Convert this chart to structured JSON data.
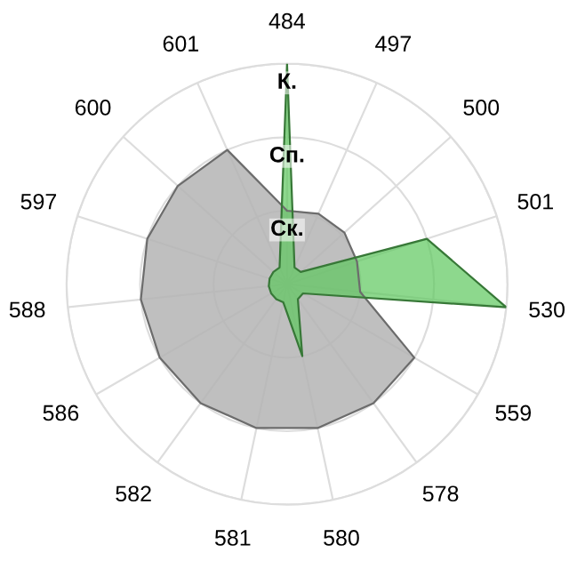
{
  "chart_data": {
    "type": "radar",
    "categories": [
      "484",
      "497",
      "500",
      "501",
      "530",
      "559",
      "578",
      "580",
      "581",
      "582",
      "586",
      "588",
      "597",
      "600",
      "601"
    ],
    "series": [
      {
        "color": "#b4b4b4",
        "values": [
          1.0,
          1.05,
          1.05,
          1.0,
          1.0,
          2.0,
          2.0,
          2.0,
          2.0,
          2.0,
          2.0,
          2.0,
          2.0,
          2.0,
          2.0
        ]
      },
      {
        "color": "#5cc85c",
        "values": [
          3.0,
          0.25,
          0.25,
          2.0,
          3.0,
          0.25,
          0.25,
          1.0,
          0.25,
          0.25,
          0.25,
          0.25,
          0.25,
          0.25,
          0.25
        ]
      }
    ],
    "ylim": [
      0,
      3
    ],
    "yticks": [
      {
        "value": 1,
        "label": "Ск."
      },
      {
        "value": 2,
        "label": "Сп."
      },
      {
        "value": 3,
        "label": "К."
      }
    ],
    "grid": true,
    "legend": false
  }
}
